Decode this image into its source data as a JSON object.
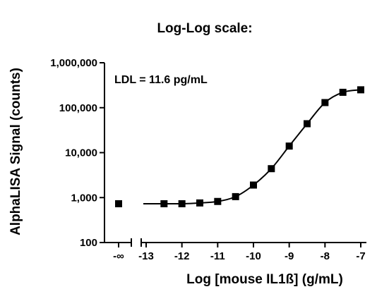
{
  "chart_data": {
    "type": "scatter",
    "title": "Log-Log scale:",
    "xlabel": "Log [mouse IL1ß] (g/mL)",
    "ylabel": "AlphaLISA Signal (counts)",
    "annotation": "LDL = 11.6 pg/mL",
    "yscale": "log",
    "color": "#000000",
    "ylim": [
      100,
      1000000
    ],
    "yticks": [
      {
        "value": 100,
        "label": "100"
      },
      {
        "value": 1000,
        "label": "1,000"
      },
      {
        "value": 10000,
        "label": "10,000"
      },
      {
        "value": 100000,
        "label": "100,000"
      },
      {
        "value": 1000000,
        "label": "1,000,000"
      }
    ],
    "xlim": [
      -13,
      -7
    ],
    "xticks": [
      -13,
      -12,
      -11,
      -10,
      -9,
      -8,
      -7
    ],
    "zero_point": {
      "label": "-∞",
      "value": 730
    },
    "x": [
      -12.5,
      -12,
      -11.5,
      -11,
      -10.5,
      -10,
      -9.5,
      -9,
      -8.5,
      -8,
      -7.5,
      -7
    ],
    "values": [
      730,
      730,
      760,
      820,
      1050,
      1900,
      4400,
      14000,
      44000,
      130000,
      220000,
      250000
    ]
  }
}
